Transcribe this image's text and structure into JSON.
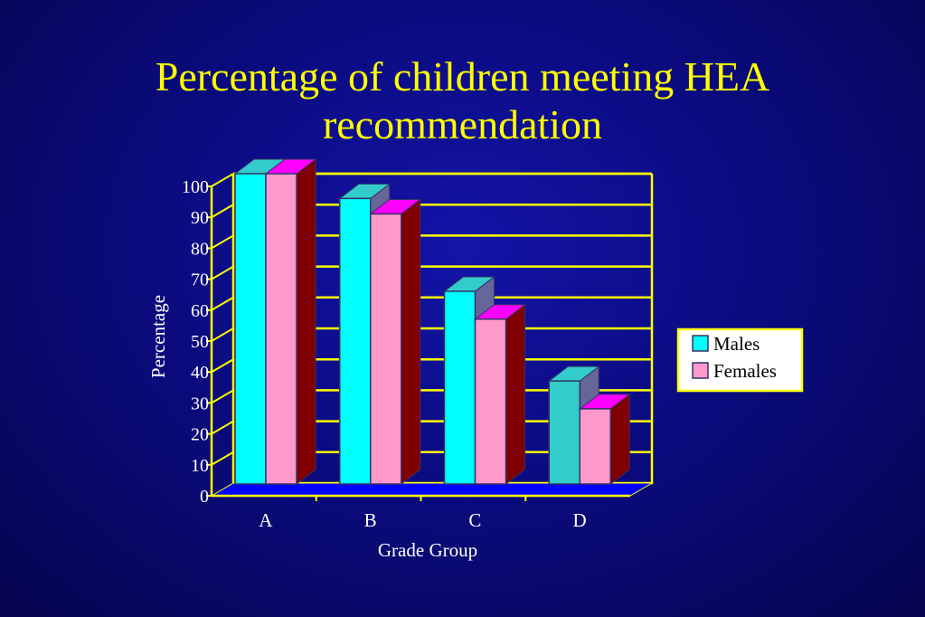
{
  "slide": {
    "title_line1": "Percentage of children meeting HEA",
    "title_line2": "recommendation"
  },
  "chart_data": {
    "type": "bar",
    "categories": [
      "A",
      "B",
      "C",
      "D"
    ],
    "series": [
      {
        "name": "Males",
        "values": [
          100,
          92,
          62,
          33
        ],
        "color": "#00ffff"
      },
      {
        "name": "Females",
        "values": [
          100,
          87,
          53,
          24
        ],
        "color": "#ff99cc"
      }
    ],
    "xlabel": "Grade Group",
    "ylabel": "Percentage",
    "ylim": [
      0,
      100
    ],
    "yticks": [
      0,
      10,
      20,
      30,
      40,
      50,
      60,
      70,
      80,
      90,
      100
    ],
    "grid": true,
    "legend": "right",
    "colors": {
      "background": "#0b0b80",
      "title": "#ffff00",
      "axes": "#ffff00",
      "floor": "#0000ff",
      "males_top": "#33cccc",
      "males_side": "#666699",
      "females_top": "#ff00ff",
      "females_side": "#800000",
      "legend_bg": "#ffffff"
    }
  }
}
